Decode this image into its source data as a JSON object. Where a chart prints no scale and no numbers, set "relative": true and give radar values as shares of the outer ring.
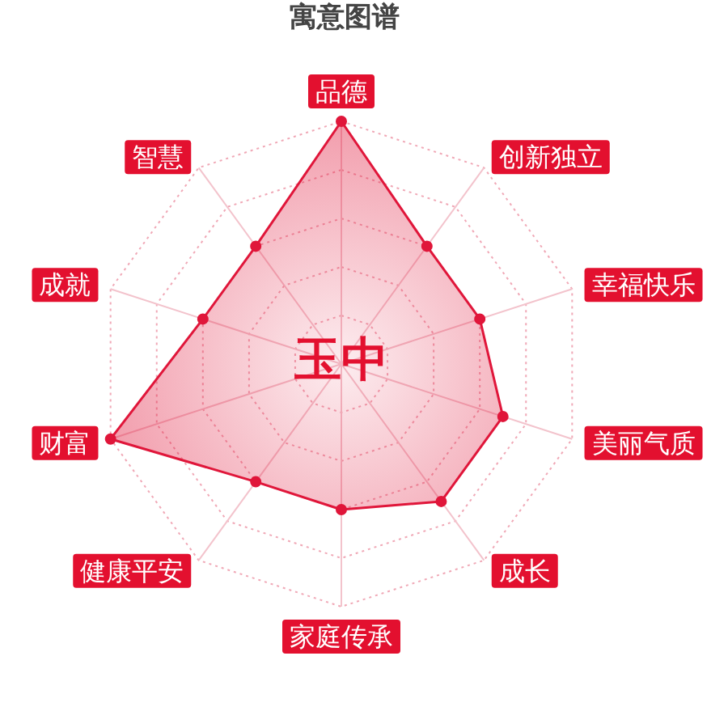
{
  "chart_data": {
    "type": "radar",
    "title": "寓意图谱",
    "categories": [
      "品德",
      "创新独立",
      "幸福快乐",
      "美丽气质",
      "成长",
      "家庭传承",
      "健康平安",
      "财富",
      "成就",
      "智慧"
    ],
    "series": [
      {
        "color": "#e0163a",
        "values": [
          1,
          0.6,
          0.6,
          0.7,
          0.7,
          0.6,
          0.6,
          1,
          0.6,
          0.6
        ]
      }
    ],
    "relative": true,
    "grid": true,
    "marker": "circle",
    "annotations": [
      "玉中"
    ]
  }
}
